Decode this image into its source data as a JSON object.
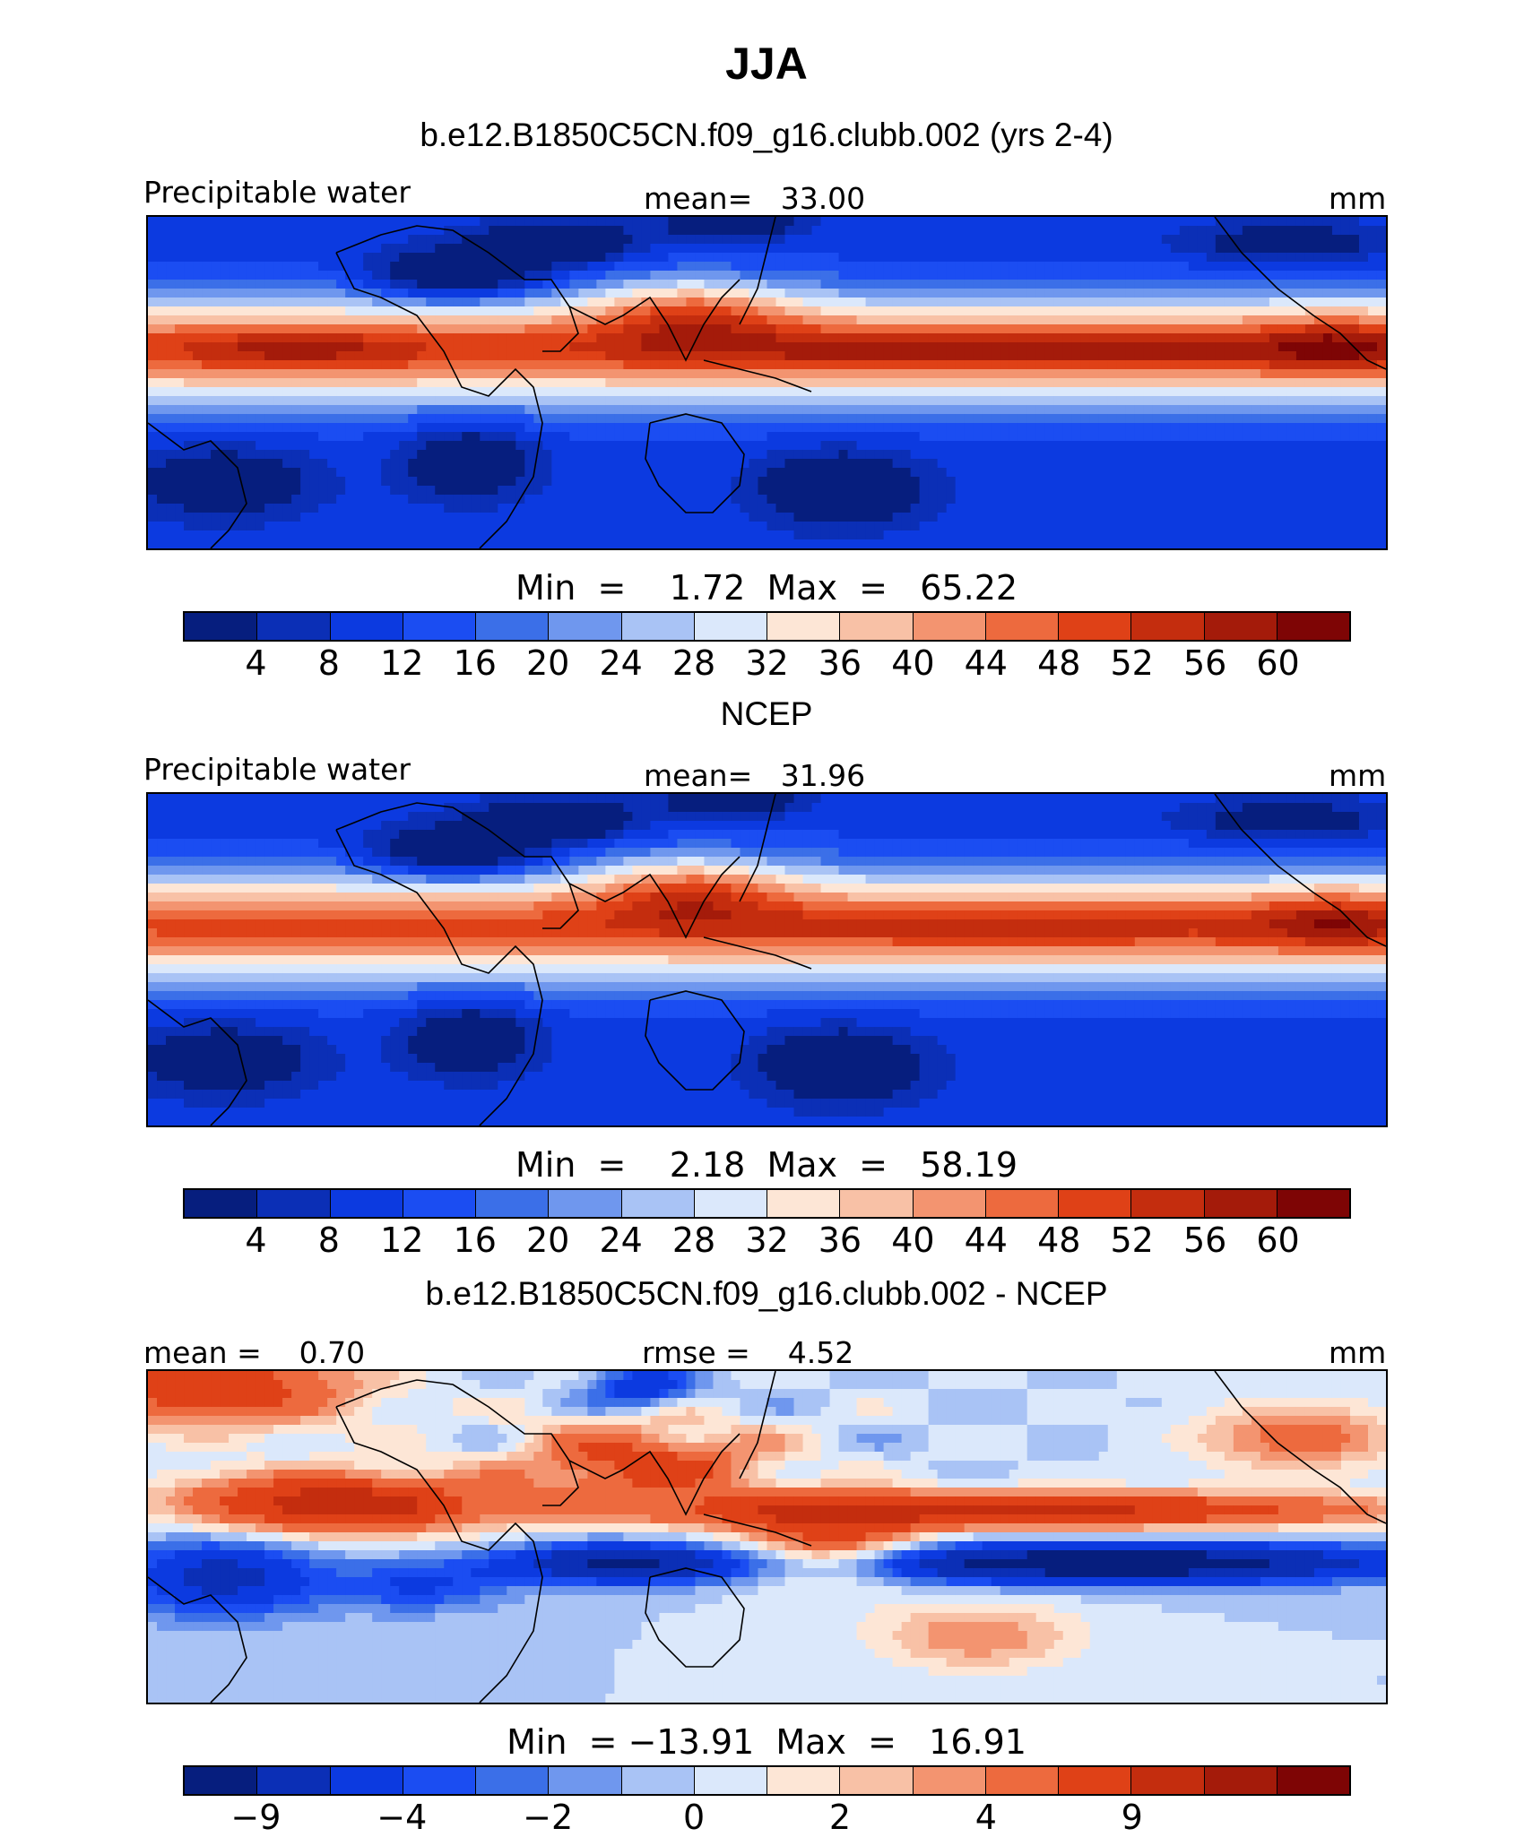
{
  "figure": {
    "title": "JJA"
  },
  "panels": [
    {
      "id": "model",
      "subtitle": "b.e12.B1850C5CN.f09_g16.clubb.002 (yrs 2-4)",
      "left_label": "Precipitable water",
      "center_label": "mean=   33.00",
      "units": "mm",
      "min_max": "Min  =    1.72  Max  =   65.22",
      "colorbar_ticks": [
        "4",
        "8",
        "12",
        "16",
        "20",
        "24",
        "28",
        "32",
        "36",
        "40",
        "44",
        "48",
        "52",
        "56",
        "60"
      ],
      "colorbar_colors": [
        "#061e7e",
        "#0b2fb6",
        "#0c3ae0",
        "#1b4df2",
        "#3b6fe8",
        "#6f97ee",
        "#a9c3f5",
        "#dbe8fb",
        "#fde6d6",
        "#f8c1a6",
        "#f39470",
        "#ed6a3e",
        "#df4117",
        "#c42d0e",
        "#a41b0a",
        "#7e0505"
      ],
      "field": "model"
    },
    {
      "id": "obs",
      "subtitle": "NCEP",
      "left_label": "Precipitable water",
      "center_label": "mean=   31.96",
      "units": "mm",
      "min_max": "Min  =    2.18  Max  =   58.19",
      "colorbar_ticks": [
        "4",
        "8",
        "12",
        "16",
        "20",
        "24",
        "28",
        "32",
        "36",
        "40",
        "44",
        "48",
        "52",
        "56",
        "60"
      ],
      "colorbar_colors": [
        "#061e7e",
        "#0b2fb6",
        "#0c3ae0",
        "#1b4df2",
        "#3b6fe8",
        "#6f97ee",
        "#a9c3f5",
        "#dbe8fb",
        "#fde6d6",
        "#f8c1a6",
        "#f39470",
        "#ed6a3e",
        "#df4117",
        "#c42d0e",
        "#a41b0a",
        "#7e0505"
      ],
      "field": "obs"
    },
    {
      "id": "diff",
      "subtitle": "b.e12.B1850C5CN.f09_g16.clubb.002 - NCEP",
      "left_label": "mean =    0.70",
      "center_label": "rmse =    4.52",
      "units": "mm",
      "min_max": "Min  = −13.91  Max  =   16.91",
      "colorbar_ticks": [
        "−9",
        "−4",
        "−2",
        "0",
        "2",
        "4",
        "9"
      ],
      "colorbar_colors": [
        "#061e7e",
        "#0b2fb6",
        "#0c3ae0",
        "#1b4df2",
        "#3b6fe8",
        "#6f97ee",
        "#a9c3f5",
        "#dbe8fb",
        "#fde6d6",
        "#f8c1a6",
        "#f39470",
        "#ed6a3e",
        "#df4117",
        "#c42d0e",
        "#a41b0a",
        "#7e0505"
      ],
      "field": "diff"
    }
  ]
}
